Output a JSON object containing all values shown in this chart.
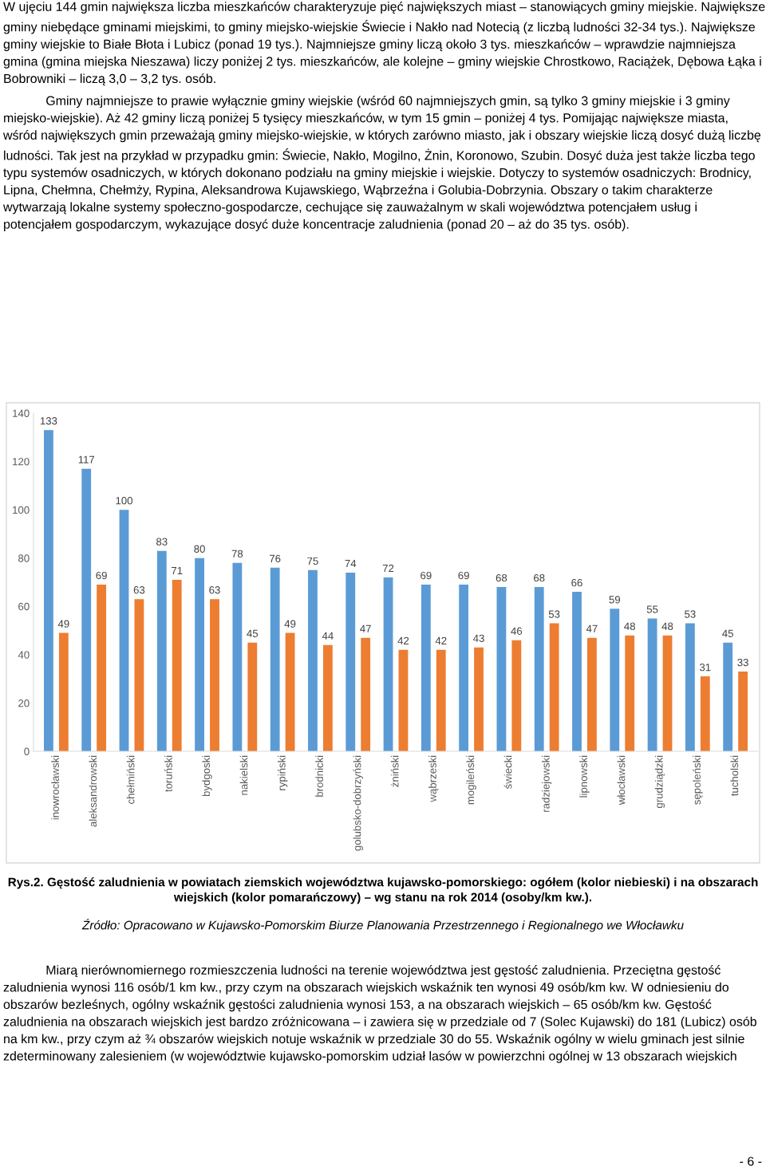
{
  "chart_data": {
    "type": "bar",
    "title": "Rys.2. Gęstość zaludnienia w powiatach ziemskich województwa kujawsko-pomorskiego: ogółem (kolor niebieski) i na obszarach wiejskich (kolor pomarańczowy) – wg stanu na rok 2014 (osoby/km kw.).",
    "annotations": [
      "W ujęciu 144 gmin największa liczba mieszkańców charakteryzuje pięć największych miast – stanowiących gminy miejskie. Największe gminy niebędące gminami miejskimi, to gminy miejsko-wiejskie Świecie i Nakło nad Notecią (z liczbą ludności 32-34 tys.). Największe gminy wiejskie to Białe Błota i Lubicz (ponad 19 tys.). Najmniejsze gminy liczą około 3 tys. mieszkańców – wprawdzie najmniejsza gmina (gmina miejska Nieszawa) liczy poniżej 2 tys. mieszkańców, ale kolejne – gminy wiejskie Chrostkowo, Raciążek, Dębowa Łąka i Bobrowniki – liczą 3,0 – 3,2 tys. osób.",
      "Gminy najmniejsze to prawie wyłącznie gminy wiejskie (wśród 60 najmniejszych gmin, są tylko 3 gminy miejskie i 3 gminy miejsko-wiejskie). Aż 42 gminy liczą poniżej 5 tysięcy mieszkańców, w tym 15 gmin – poniżej 4 tys. Pomijając największe miasta, wśród największych gmin przeważają gminy miejsko-wiejskie, w których zarówno miasto, jak i obszary wiejskie liczą dosyć dużą liczbę ludności. Tak jest na przykład w przypadku gmin: Świecie, Nakło, Mogilno, Żnin, Koronowo, Szubin. Dosyć duża jest także liczba tego typu systemów osadniczych, w których dokonano podziału na gminy miejskie i wiejskie. Dotyczy to systemów osadniczych: Brodnicy, Lipna, Chełmna, Chełmży, Rypina, Aleksandrowa Kujawskiego, Wąbrzeźna i Golubia-Dobrzynia. Obszary o takim charakterze wytwarzają lokalne systemy społeczno-gospodarcze, cechujące się zauważalnym w skali województwa potencjałem usług i potencjałem gospodarczym, wykazujące dosyć duże koncentracje zaludnienia (ponad 20 – aż do 35 tys. osób).",
      "Źródło: Opracowano w Kujawsko-Pomorskim Biurze Planowania Przestrzennego i Regionalnego we Włocławku",
      "Miarą nierównomiernego rozmieszczenia ludności na terenie województwa jest gęstość zaludnienia. Przeciętna gęstość zaludnienia wynosi 116 osób/1 km kw., przy czym na obszarach wiejskich wskaźnik ten wynosi 49 osób/km kw. W odniesieniu do obszarów bezleśnych, ogólny wskaźnik gęstości zaludnienia wynosi 153, a na obszarach wiejskich – 65 osób/km kw. Gęstość zaludnienia na obszarach wiejskich jest bardzo zróżnicowana – i zawiera się w przedziale od 7 (Solec Kujawski) do 181 (Lubicz) osób na km kw., przy czym aż ¾ obszarów wiejskich notuje wskaźnik w przedziale 30 do 55. Wskaźnik ogólny w wielu gminach jest silnie zdeterminowany zalesieniem (w województwie kujawsko-pomorskim udział lasów w powierzchni ogólnej w 13 obszarach wiejskich",
      "- 6 -"
    ],
    "categories": [
      "inowrocławski",
      "aleksandrowski",
      "chełmiński",
      "toruński",
      "bydgoski",
      "nakielski",
      "rypiński",
      "brodnicki",
      "golubsko-dobrzyński",
      "żniński",
      "wąbrzeski",
      "mogileński",
      "świecki",
      "radziejowski",
      "lipnowski",
      "włocławski",
      "grudziądzki",
      "sępoleński",
      "tucholski"
    ],
    "series": [
      {
        "color": "#5b9bd5",
        "values": [
          133,
          117,
          100,
          83,
          80,
          78,
          76,
          75,
          74,
          72,
          69,
          69,
          68,
          68,
          66,
          59,
          55,
          53,
          45
        ]
      },
      {
        "color": "#ed7d31",
        "values": [
          49,
          69,
          63,
          71,
          63,
          45,
          49,
          44,
          47,
          42,
          42,
          43,
          46,
          53,
          47,
          48,
          48,
          31,
          33
        ]
      }
    ],
    "ylim": [
      0,
      140
    ],
    "yticks": [
      0,
      20,
      40,
      60,
      80,
      100,
      120,
      140
    ],
    "data_labels": true
  }
}
